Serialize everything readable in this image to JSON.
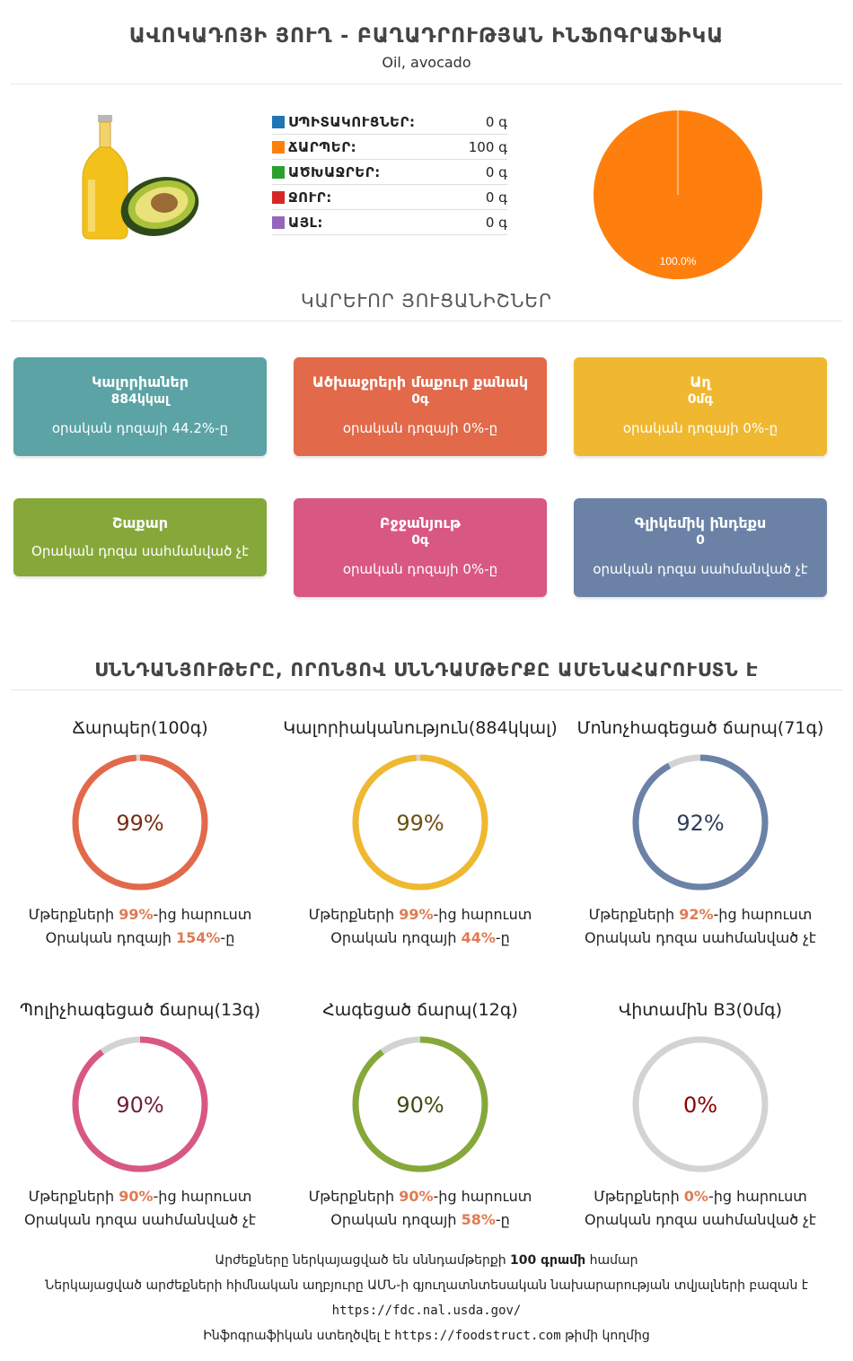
{
  "header": {
    "title": "ԱՎՈԿԱԴՈՅԻ ՅՈՒՂ - ԲԱՂԱԴՐՈՒԹՅԱՆ ԻՆՖՈԳՐԱՖԻԿԱ",
    "subtitle": "Oil, avocado"
  },
  "macros": [
    {
      "label": "ՍՊԻՏԱԿՈՒՑՆԵՐ:",
      "value": "0 գ",
      "color": "#1f77b4"
    },
    {
      "label": "ՃԱՐՊԵՐ:",
      "value": "100 գ",
      "color": "#ff7f0e"
    },
    {
      "label": "ԱԾԽԱՋՐԵՐ:",
      "value": "0 գ",
      "color": "#2ca02c"
    },
    {
      "label": "ՋՈՒՐ:",
      "value": "0 գ",
      "color": "#d62728"
    },
    {
      "label": "ԱՅԼ:",
      "value": "0 գ",
      "color": "#9467bd"
    }
  ],
  "chart_data": {
    "type": "pie",
    "slices": [
      {
        "name": "ՃԱՐՊԵՐ",
        "value": 100.0,
        "color": "#ff7f0e"
      }
    ],
    "labels": [
      "100.0%"
    ]
  },
  "sections": {
    "key_characteristics": "ԿԱՐԵՒՈՐ ՅՈՒՑԱՆԻՇՆԵՐ",
    "richest_in": "ՍՆՆԴԱՆՅՈՒԹԵՐԸ, ՈՐՈՆՑՈՎ ՍՆՆԴԱՄԹԵՐՔԸ ԱՄԵՆԱՀԱՐՈՒՍՏՆ Է"
  },
  "cards": [
    {
      "title": "Կալորիաներ",
      "value": "884կկալ",
      "desc": "օրական դոզայի 44.2%-ը",
      "color": "#5ba3a5"
    },
    {
      "title": "Ածխաջրերի մաքուր քանակ",
      "value": "0գ",
      "desc": "օրական դոզայի 0%-ը",
      "color": "#e2694a"
    },
    {
      "title": "Աղ",
      "value": "0մգ",
      "desc": "օրական դոզայի 0%-ը",
      "color": "#f0b830"
    },
    {
      "title": "Շաքար",
      "value": "",
      "desc": "Օրական դոզա սահմանված չէ",
      "color": "#86a83a"
    },
    {
      "title": "Բջջանյութ",
      "value": "0գ",
      "desc": "օրական դոզայի 0%-ը",
      "color": "#d95783"
    },
    {
      "title": "Գլիկեմիկ ինդեքս",
      "value": "0",
      "desc": "օրական դոզա սահմանված չէ",
      "color": "#6b82a6"
    }
  ],
  "gauges": [
    {
      "title": "Ճարպեր(100գ)",
      "percent": 99,
      "percent_label": "99%",
      "color": "#e2694a",
      "text_color": "#7a2c14",
      "line1_pre": "Մթերքների ",
      "line1_bold": "99%",
      "line1_post": "-ից հարուստ",
      "line2_pre": "Օրական դոզայի ",
      "line2_bold": "154%",
      "line2_post": "-ը"
    },
    {
      "title": "Կալորիականություն(884կկալ)",
      "percent": 99,
      "percent_label": "99%",
      "color": "#f0b830",
      "text_color": "#6b5010",
      "line1_pre": "Մթերքների ",
      "line1_bold": "99%",
      "line1_post": "-ից հարուստ",
      "line2_pre": "Օրական դոզայի ",
      "line2_bold": "44%",
      "line2_post": "-ը"
    },
    {
      "title": "Մոնոչհագեցած ճարպ(71գ)",
      "percent": 92,
      "percent_label": "92%",
      "color": "#6b82a6",
      "text_color": "#2c3e5a",
      "line1_pre": "Մթերքների ",
      "line1_bold": "92%",
      "line1_post": "-ից հարուստ",
      "line2_pre": "Օրական դոզա սահմանված չէ",
      "line2_bold": "",
      "line2_post": ""
    },
    {
      "title": "Պոլիչհագեցած ճարպ(13գ)",
      "percent": 90,
      "percent_label": "90%",
      "color": "#d95783",
      "text_color": "#6e1f3c",
      "line1_pre": "Մթերքների ",
      "line1_bold": "90%",
      "line1_post": "-ից հարուստ",
      "line2_pre": "Օրական դոզա սահմանված չէ",
      "line2_bold": "",
      "line2_post": ""
    },
    {
      "title": "Հագեցած ճարպ(12գ)",
      "percent": 90,
      "percent_label": "90%",
      "color": "#86a83a",
      "text_color": "#3b4d12",
      "line1_pre": "Մթերքների ",
      "line1_bold": "90%",
      "line1_post": "-ից հարուստ",
      "line2_pre": "Օրական դոզայի ",
      "line2_bold": "58%",
      "line2_post": "-ը"
    },
    {
      "title": "Վիտամին B3(0մգ)",
      "percent": 0,
      "percent_label": "0%",
      "color": "#cfcfcf",
      "text_color": "#8b0000",
      "line1_pre": "Մթերքների ",
      "line1_bold": "0%",
      "line1_post": "-ից հարուստ",
      "line2_pre": "Օրական դոզա սահմանված չէ",
      "line2_bold": "",
      "line2_post": ""
    }
  ],
  "footer": {
    "line1_pre": "Արժեքները ներկայացված են սննդամթերքի ",
    "line1_bold": "100 գրամի",
    "line1_post": " համար",
    "line2": "Ներկայացված արժեքների հիմնական աղբյուրը ԱՄՆ-ի գյուղատնտեսական նախարարության տվյալների բազան է",
    "line3": "https://fdc.nal.usda.gov/",
    "line4_pre": "Ինֆոգրաֆիկան ստեղծվել է ",
    "line4_link": "https://foodstruct.com",
    "line4_post": " թիմի կողմից"
  }
}
